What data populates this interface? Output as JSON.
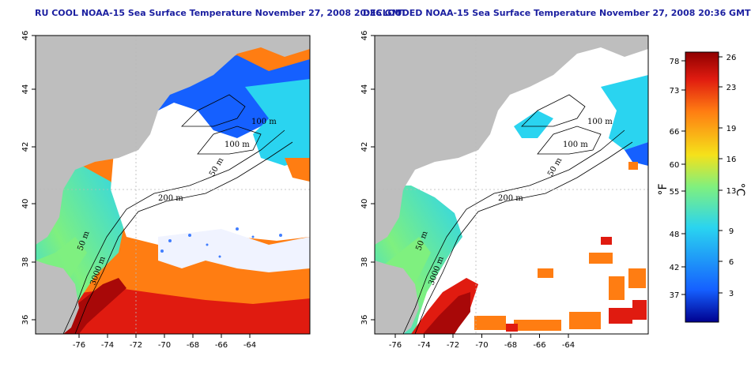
{
  "panels": [
    {
      "id": "left",
      "title": "RU COOL NOAA-15 Sea Surface Temperature November 27, 2008 20:36 GMT",
      "contour_labels": [
        "100 m",
        "100 m",
        "50 m",
        "200 m",
        "50 m",
        "3000 m"
      ]
    },
    {
      "id": "right",
      "title": "DECLOUDED NOAA-15 Sea Surface Temperature November 27, 2008 20:36 GMT",
      "contour_labels": [
        "100 m",
        "100 m",
        "50 m",
        "200 m",
        "50 m",
        "3000 m"
      ]
    }
  ],
  "axes": {
    "x_ticks": [
      "-76",
      "-74",
      "-72",
      "-70",
      "-68",
      "-66",
      "-64"
    ],
    "y_ticks": [
      "36",
      "38",
      "40",
      "42",
      "44",
      "46"
    ]
  },
  "colorbar": {
    "fahrenheit_label": "°F",
    "celsius_label": "°C",
    "fahrenheit_ticks": [
      "78",
      "73",
      "66",
      "60",
      "55",
      "48",
      "42",
      "37"
    ],
    "celsius_ticks": [
      "26",
      "23",
      "19",
      "16",
      "13",
      "9",
      "6",
      "3"
    ],
    "colors": {
      "cold": "#00008f",
      "blue": "#1560ff",
      "cyan": "#2ad4f0",
      "green": "#7ff07f",
      "yellow": "#f5e11a",
      "orange": "#ff7d12",
      "red": "#e01b10",
      "dark_red": "#8f0000"
    }
  },
  "map_colors": {
    "land": "#bebebe",
    "cloud": "#ffffff",
    "grid": "#b8b8b8",
    "contour": "#000000"
  }
}
